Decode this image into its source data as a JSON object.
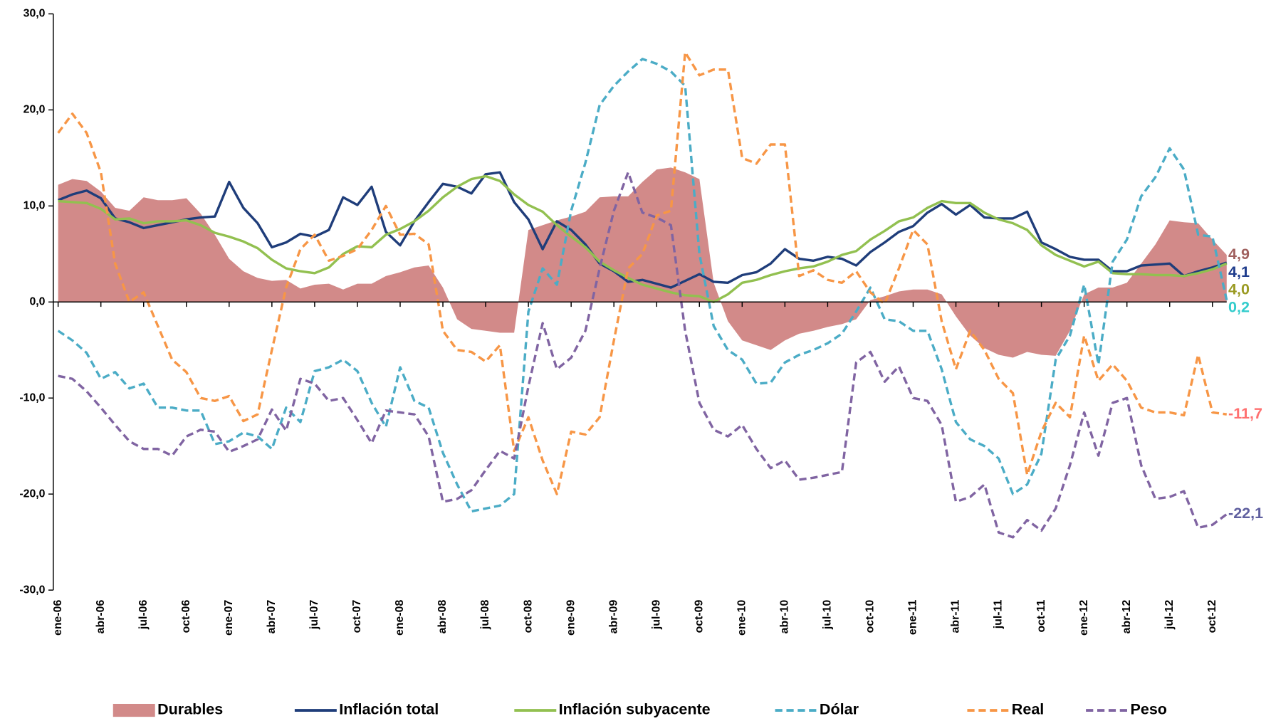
{
  "chart_data": {
    "type": "line",
    "categories": [
      "ene-06",
      null,
      null,
      "abr-06",
      null,
      null,
      "jul-06",
      null,
      null,
      "oct-06",
      null,
      null,
      "ene-07",
      null,
      null,
      "abr-07",
      null,
      null,
      "jul-07",
      null,
      null,
      "oct-07",
      null,
      null,
      "ene-08",
      null,
      null,
      "abr-08",
      null,
      null,
      "jul-08",
      null,
      null,
      "oct-08",
      null,
      null,
      "ene-09",
      null,
      null,
      "abr-09",
      null,
      null,
      "jul-09",
      null,
      null,
      "oct-09",
      null,
      null,
      "ene-10",
      null,
      null,
      "abr-10",
      null,
      null,
      "jul-10",
      null,
      null,
      "oct-10",
      null,
      null,
      "ene-11",
      null,
      null,
      "abr-11",
      null,
      null,
      "jul-11",
      null,
      null,
      "oct-11",
      null,
      null,
      "ene-12",
      null,
      null,
      "abr-12",
      null,
      null,
      "jul-12",
      null,
      null,
      "oct-12",
      null
    ],
    "ylim": [
      -30,
      30
    ],
    "yticks": [
      {
        "value": -30,
        "label": "-30,0"
      },
      {
        "value": -20,
        "label": "-20,0"
      },
      {
        "value": -10,
        "label": "-10,0"
      },
      {
        "value": 0,
        "label": "0,0"
      },
      {
        "value": 10,
        "label": "10,0"
      },
      {
        "value": 20,
        "label": "20,0"
      },
      {
        "value": 30,
        "label": "30,0"
      }
    ],
    "series": [
      {
        "name": "Durables",
        "kind": "area",
        "color": "#d28a89",
        "label_color": "#a0605e",
        "values": [
          12.2,
          12.8,
          12.6,
          11.5,
          9.8,
          9.5,
          10.9,
          10.6,
          10.6,
          10.8,
          9.2,
          7.0,
          4.5,
          3.2,
          2.5,
          2.2,
          2.3,
          1.4,
          1.8,
          1.9,
          1.3,
          1.9,
          1.9,
          2.7,
          3.1,
          3.6,
          3.8,
          1.5,
          -1.8,
          -2.8,
          -3.0,
          -3.2,
          -3.2,
          7.5,
          8.0,
          8.5,
          8.9,
          9.4,
          10.9,
          11.0,
          11.0,
          12.5,
          13.8,
          14.0,
          13.5,
          12.8,
          2.0,
          -2.0,
          -4.0,
          -4.5,
          -5.0,
          -4.0,
          -3.3,
          -3.0,
          -2.6,
          -2.3,
          -1.8,
          0.2,
          0.6,
          1.1,
          1.3,
          1.3,
          0.8,
          -1.5,
          -3.5,
          -4.8,
          -5.5,
          -5.8,
          -5.2,
          -5.5,
          -5.6,
          -3.0,
          0.8,
          1.5,
          1.5,
          2.0,
          4.0,
          6.0,
          8.5,
          8.3,
          8.2,
          6.5,
          4.9
        ],
        "value_labels": [
          null,
          null,
          null,
          null,
          null,
          null,
          null,
          null,
          null,
          null,
          null,
          null,
          null,
          null,
          null,
          null,
          null,
          null,
          null,
          null,
          null,
          null,
          null,
          null,
          null,
          null,
          null,
          null,
          null,
          null,
          null,
          null,
          null,
          null,
          null,
          null,
          null,
          null,
          null,
          null,
          null,
          null,
          null,
          null,
          null,
          null,
          null,
          null,
          null,
          null,
          null,
          null,
          null,
          null,
          null,
          null,
          null,
          null,
          null,
          null,
          null,
          null,
          null,
          null,
          null,
          null,
          null,
          null,
          null,
          null,
          null,
          null,
          null,
          null,
          null,
          null,
          null,
          null,
          null,
          null,
          null,
          null,
          "4,9"
        ]
      },
      {
        "name": "Inflación total",
        "kind": "solid",
        "color": "#1f3d7a",
        "label_color": "#1f3c8c",
        "values": [
          10.6,
          11.2,
          11.6,
          10.8,
          8.7,
          8.3,
          7.7,
          8.0,
          8.3,
          8.6,
          8.8,
          8.9,
          12.5,
          9.8,
          8.2,
          5.7,
          6.2,
          7.1,
          6.8,
          7.5,
          10.9,
          10.1,
          12.0,
          7.3,
          5.9,
          8.4,
          10.4,
          12.3,
          12.0,
          11.3,
          13.3,
          13.5,
          10.4,
          8.6,
          5.5,
          8.4,
          7.5,
          6.0,
          4.0,
          3.2,
          2.1,
          2.3,
          1.9,
          1.5,
          2.2,
          2.9,
          2.1,
          2.0,
          2.8,
          3.1,
          4.0,
          5.5,
          4.5,
          4.3,
          4.7,
          4.5,
          3.8,
          5.2,
          6.2,
          7.3,
          7.9,
          9.3,
          10.2,
          9.1,
          10.1,
          8.8,
          8.7,
          8.7,
          9.4,
          6.2,
          5.5,
          4.7,
          4.4,
          4.4,
          3.2,
          3.2,
          3.8,
          3.9,
          4.0,
          2.7,
          3.2,
          3.6,
          4.1
        ],
        "value_labels": [
          null,
          null,
          null,
          null,
          null,
          null,
          null,
          null,
          null,
          null,
          null,
          null,
          null,
          null,
          null,
          null,
          null,
          null,
          null,
          null,
          null,
          null,
          null,
          null,
          null,
          null,
          null,
          null,
          null,
          null,
          null,
          null,
          null,
          null,
          null,
          null,
          null,
          null,
          null,
          null,
          null,
          null,
          null,
          null,
          null,
          null,
          null,
          null,
          null,
          null,
          null,
          null,
          null,
          null,
          null,
          null,
          null,
          null,
          null,
          null,
          null,
          null,
          null,
          null,
          null,
          null,
          null,
          null,
          null,
          null,
          null,
          null,
          null,
          null,
          null,
          null,
          null,
          null,
          null,
          null,
          null,
          null,
          "4,1"
        ]
      },
      {
        "name": "Inflación subyacente",
        "kind": "solid",
        "color": "#92c050",
        "label_color": "#9a9a22",
        "values": [
          10.5,
          10.4,
          10.3,
          9.7,
          8.6,
          8.7,
          8.2,
          8.4,
          8.4,
          8.5,
          8.0,
          7.2,
          6.8,
          6.3,
          5.6,
          4.4,
          3.5,
          3.2,
          3.0,
          3.6,
          5.0,
          5.8,
          5.7,
          7.0,
          7.6,
          8.4,
          9.5,
          10.9,
          12.0,
          12.8,
          13.1,
          12.6,
          11.2,
          10.1,
          9.4,
          8.0,
          6.8,
          5.7,
          4.2,
          3.3,
          2.5,
          1.8,
          1.4,
          1.0,
          0.7,
          0.6,
          0.0,
          0.8,
          2.0,
          2.3,
          2.8,
          3.2,
          3.5,
          3.7,
          4.2,
          4.9,
          5.3,
          6.5,
          7.4,
          8.4,
          8.8,
          9.8,
          10.5,
          10.3,
          10.3,
          9.3,
          8.6,
          8.2,
          7.5,
          5.9,
          4.9,
          4.3,
          3.7,
          4.2,
          3.0,
          2.9,
          2.9,
          2.8,
          2.8,
          2.7,
          3.0,
          3.4,
          4.0
        ],
        "value_labels": [
          null,
          null,
          null,
          null,
          null,
          null,
          null,
          null,
          null,
          null,
          null,
          null,
          null,
          null,
          null,
          null,
          null,
          null,
          null,
          null,
          null,
          null,
          null,
          null,
          null,
          null,
          null,
          null,
          null,
          null,
          null,
          null,
          null,
          null,
          null,
          null,
          null,
          null,
          null,
          null,
          null,
          null,
          null,
          null,
          null,
          null,
          null,
          null,
          null,
          null,
          null,
          null,
          null,
          null,
          null,
          null,
          null,
          null,
          null,
          null,
          null,
          null,
          null,
          null,
          null,
          null,
          null,
          null,
          null,
          null,
          null,
          null,
          null,
          null,
          null,
          null,
          null,
          null,
          null,
          null,
          null,
          null,
          "4,0"
        ]
      },
      {
        "name": "Dólar",
        "kind": "dashed",
        "color": "#4bacc6",
        "label_color": "#33cccc",
        "values": [
          -3.0,
          -4.0,
          -5.3,
          -8.0,
          -7.3,
          -9.0,
          -8.5,
          -11.0,
          -11.0,
          -11.3,
          -11.3,
          -14.8,
          -14.5,
          -13.6,
          -14.0,
          -15.3,
          -11.0,
          -12.5,
          -7.2,
          -6.8,
          -6.0,
          -7.2,
          -10.5,
          -13.0,
          -6.8,
          -10.3,
          -11.0,
          -15.7,
          -19.0,
          -21.8,
          -21.5,
          -21.2,
          -20.0,
          -1.0,
          3.5,
          1.8,
          9.5,
          14.5,
          20.5,
          22.5,
          24.0,
          25.3,
          24.8,
          24.0,
          22.5,
          5.0,
          -2.5,
          -5.0,
          -6.0,
          -8.5,
          -8.4,
          -6.3,
          -5.5,
          -5.0,
          -4.3,
          -3.3,
          -1.0,
          1.5,
          -1.8,
          -2.0,
          -3.0,
          -3.0,
          -7.0,
          -12.5,
          -14.3,
          -15.0,
          -16.3,
          -20.0,
          -19.0,
          -15.8,
          -6.0,
          -3.5,
          1.8,
          -6.5,
          4.2,
          6.5,
          11.0,
          13.0,
          16.0,
          13.8,
          7.0,
          6.8,
          0.2
        ],
        "value_labels": [
          null,
          null,
          null,
          null,
          null,
          null,
          null,
          null,
          null,
          null,
          null,
          null,
          null,
          null,
          null,
          null,
          null,
          null,
          null,
          null,
          null,
          null,
          null,
          null,
          null,
          null,
          null,
          null,
          null,
          null,
          null,
          null,
          null,
          null,
          null,
          null,
          null,
          null,
          null,
          null,
          null,
          null,
          null,
          null,
          null,
          null,
          null,
          null,
          null,
          null,
          null,
          null,
          null,
          null,
          null,
          null,
          null,
          null,
          null,
          null,
          null,
          null,
          null,
          null,
          null,
          null,
          null,
          null,
          null,
          null,
          null,
          null,
          null,
          null,
          null,
          null,
          null,
          null,
          null,
          null,
          null,
          null,
          "0,2"
        ]
      },
      {
        "name": "Real",
        "kind": "dashed",
        "color": "#f79646",
        "label_color": "#ff7070",
        "values": [
          17.6,
          19.6,
          17.6,
          13.5,
          4.0,
          0.0,
          1.0,
          -2.5,
          -6.0,
          -7.3,
          -10.0,
          -10.3,
          -9.8,
          -12.4,
          -11.7,
          -5.0,
          1.5,
          5.5,
          7.0,
          4.3,
          4.8,
          5.5,
          7.5,
          10.0,
          7.0,
          7.1,
          6.0,
          -3.0,
          -5.0,
          -5.2,
          -6.2,
          -4.5,
          -15.5,
          -12.0,
          -16.5,
          -20.0,
          -13.5,
          -13.8,
          -12.0,
          -4.0,
          3.5,
          5.0,
          9.0,
          9.5,
          26.0,
          23.6,
          24.2,
          24.2,
          15.0,
          14.4,
          16.4,
          16.4,
          2.7,
          3.3,
          2.3,
          2.0,
          3.2,
          1.0,
          -0.2,
          3.5,
          7.5,
          6.0,
          -2.0,
          -7.0,
          -3.0,
          -5.0,
          -8.0,
          -9.5,
          -18.0,
          -13.5,
          -10.5,
          -12.0,
          -3.5,
          -8.2,
          -6.5,
          -8.2,
          -11.0,
          -11.5,
          -11.5,
          -11.8,
          -5.5,
          -11.5,
          -11.7
        ],
        "value_labels": [
          null,
          null,
          null,
          null,
          null,
          null,
          null,
          null,
          null,
          null,
          null,
          null,
          null,
          null,
          null,
          null,
          null,
          null,
          null,
          null,
          null,
          null,
          null,
          null,
          null,
          null,
          null,
          null,
          null,
          null,
          null,
          null,
          null,
          null,
          null,
          null,
          null,
          null,
          null,
          null,
          null,
          null,
          null,
          null,
          null,
          null,
          null,
          null,
          null,
          null,
          null,
          null,
          null,
          null,
          null,
          null,
          null,
          null,
          null,
          null,
          null,
          null,
          null,
          null,
          null,
          null,
          null,
          null,
          null,
          null,
          null,
          null,
          null,
          null,
          null,
          null,
          null,
          null,
          null,
          null,
          null,
          null,
          "-11,7"
        ]
      },
      {
        "name": "Peso",
        "kind": "dashed",
        "color": "#8064a2",
        "label_color": "#5f5f9f",
        "values": [
          -7.7,
          -8.0,
          -9.3,
          -11.0,
          -12.8,
          -14.5,
          -15.3,
          -15.3,
          -16.0,
          -14.0,
          -13.3,
          -13.5,
          -15.6,
          -15.0,
          -14.3,
          -11.2,
          -13.4,
          -8.0,
          -8.5,
          -10.3,
          -10.0,
          -12.3,
          -14.7,
          -11.3,
          -11.5,
          -11.7,
          -14.0,
          -20.8,
          -20.5,
          -19.6,
          -17.5,
          -15.5,
          -16.3,
          -8.8,
          -2.2,
          -7.0,
          -5.8,
          -3.0,
          3.5,
          9.5,
          13.5,
          9.3,
          8.8,
          8.0,
          -3.0,
          -10.5,
          -13.3,
          -14.0,
          -12.8,
          -15.3,
          -17.3,
          -16.5,
          -18.5,
          -18.3,
          -18.0,
          -17.7,
          -6.3,
          -5.2,
          -8.3,
          -6.7,
          -10.0,
          -10.3,
          -12.8,
          -20.8,
          -20.3,
          -19.0,
          -24.0,
          -24.5,
          -22.7,
          -23.8,
          -21.5,
          -17.0,
          -11.5,
          -16.0,
          -10.5,
          -10.0,
          -17.0,
          -20.5,
          -20.3,
          -19.7,
          -23.5,
          -23.2,
          -22.1
        ],
        "value_labels": [
          null,
          null,
          null,
          null,
          null,
          null,
          null,
          null,
          null,
          null,
          null,
          null,
          null,
          null,
          null,
          null,
          null,
          null,
          null,
          null,
          null,
          null,
          null,
          null,
          null,
          null,
          null,
          null,
          null,
          null,
          null,
          null,
          null,
          null,
          null,
          null,
          null,
          null,
          null,
          null,
          null,
          null,
          null,
          null,
          null,
          null,
          null,
          null,
          null,
          null,
          null,
          null,
          null,
          null,
          null,
          null,
          null,
          null,
          null,
          null,
          null,
          null,
          null,
          null,
          null,
          null,
          null,
          null,
          null,
          null,
          null,
          null,
          null,
          null,
          null,
          null,
          null,
          null,
          null,
          null,
          null,
          null,
          "-22,1"
        ]
      }
    ]
  }
}
